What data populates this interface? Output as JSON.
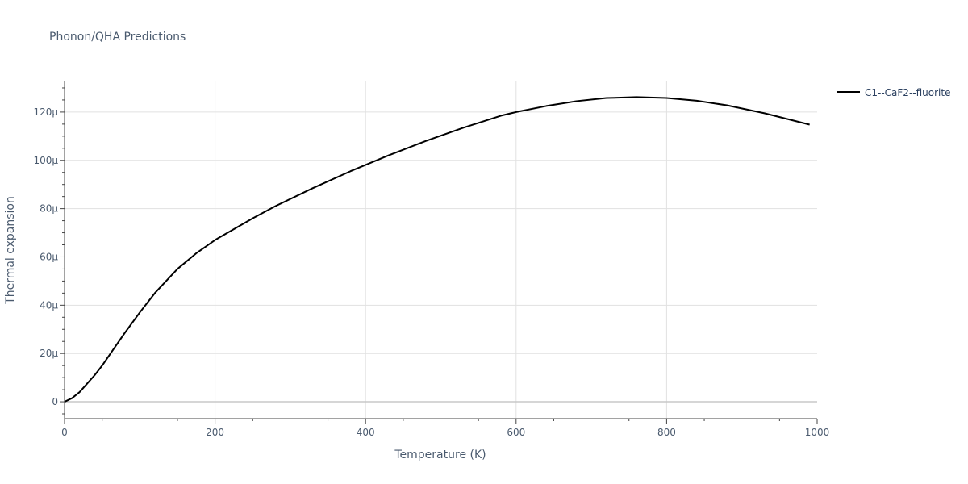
{
  "chart_data": {
    "type": "line",
    "title": "Phonon/QHA Predictions",
    "xlabel": "Temperature (K)",
    "ylabel": "Thermal expansion",
    "xlim": [
      0,
      1000
    ],
    "ylim": [
      -7,
      133
    ],
    "x_ticks": [
      0,
      200,
      400,
      600,
      800,
      1000
    ],
    "x_tick_labels": [
      "0",
      "200",
      "400",
      "600",
      "800",
      "1000"
    ],
    "y_ticks": [
      0,
      20,
      40,
      60,
      80,
      100,
      120
    ],
    "y_tick_labels": [
      "0",
      "20μ",
      "40μ",
      "60μ",
      "80μ",
      "100μ",
      "120μ"
    ],
    "grid": true,
    "legend_position": "top-right outside",
    "series": [
      {
        "name": "C1--CaF2--fluorite",
        "color": "#000000",
        "x": [
          0,
          10,
          20,
          30,
          40,
          50,
          60,
          70,
          80,
          100,
          120,
          150,
          175,
          200,
          250,
          280,
          330,
          380,
          430,
          480,
          530,
          580,
          600,
          640,
          680,
          720,
          760,
          800,
          840,
          880,
          930,
          990
        ],
        "y": [
          0,
          1.5,
          4,
          7.5,
          11,
          15,
          19.5,
          24,
          28.5,
          37,
          45,
          55,
          61.5,
          67,
          76,
          81,
          88.5,
          95.5,
          102,
          108,
          113.5,
          118.5,
          120,
          122.5,
          124.5,
          125.8,
          126.2,
          125.8,
          124.7,
          122.8,
          119.5,
          114.8
        ]
      }
    ]
  }
}
